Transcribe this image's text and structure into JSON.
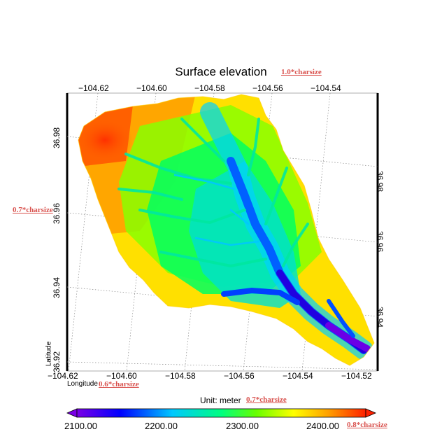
{
  "title": "Surface elevation",
  "top_lon_labels": [
    "−104.62",
    "−104.60",
    "−104.58",
    "−104.56",
    "−104.54"
  ],
  "bottom_lon_labels": [
    "−104.62",
    "−104.60",
    "−104.58",
    "−104.56",
    "−104.54",
    "−104.52"
  ],
  "left_lat_labels": [
    "36.98",
    "36.96",
    "36.94",
    "36.92"
  ],
  "right_lat_labels": [
    "36.98",
    "36.96",
    "36.94"
  ],
  "axis_titles": {
    "latitude": "Latitude",
    "longitude": "Longitude"
  },
  "colorbar": {
    "unit_label": "Unit: meter",
    "ticks": [
      "2100.00",
      "2200.00",
      "2300.00",
      "2400.00"
    ],
    "colors": [
      "#7a00e6",
      "#0000ff",
      "#00c8ff",
      "#00ff80",
      "#66ff00",
      "#ffff00",
      "#ffa000",
      "#ff2000"
    ]
  },
  "annotations": {
    "title_size": "1.0*charsize",
    "lat_label_size": "0.7*charsize",
    "lon_label_size": "0.6*charsize",
    "unit_size": "0.7*charsize",
    "tick_size": "0.8*charsize"
  }
}
